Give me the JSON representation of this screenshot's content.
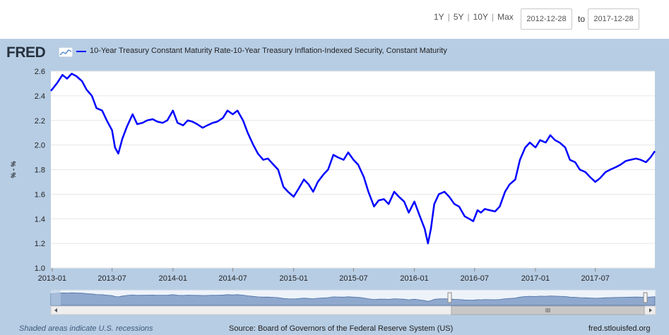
{
  "toolbar": {
    "periods": [
      "1Y",
      "5Y",
      "10Y",
      "Max"
    ],
    "start_date": "2012-12-28",
    "to_label": "to",
    "end_date": "2017-12-28"
  },
  "brand": {
    "logo_text": "FRED"
  },
  "footer": {
    "recession_note": "Shaded areas indicate U.S. recessions",
    "source": "Source: Board of Governors of the Federal Reserve System (US)",
    "site": "fred.stlouisfed.org"
  },
  "colors": {
    "series": "#0000ff",
    "frame": "#b7cde4",
    "navigator_fill": "#6f8fbd"
  },
  "chart_data": {
    "type": "line",
    "ylabel": "% - %",
    "ylim": [
      1.0,
      2.6
    ],
    "yticks": [
      1.0,
      1.2,
      1.4,
      1.6,
      1.8,
      2.0,
      2.2,
      2.4,
      2.6
    ],
    "yticklabels": [
      "1.0",
      "1.2",
      "1.4",
      "1.6",
      "1.8",
      "2.0",
      "2.2",
      "2.4",
      "2.6"
    ],
    "xlim": [
      "2012-12-28",
      "2017-12-28"
    ],
    "xticks": [
      "2013-01",
      "2013-07",
      "2014-01",
      "2014-07",
      "2015-01",
      "2015-07",
      "2016-01",
      "2016-07",
      "2017-01",
      "2017-07"
    ],
    "grid": true,
    "series": [
      {
        "name": "10-Year Treasury Constant Maturity Rate-10-Year Treasury Inflation-Indexed Security, Constant Maturity",
        "x": [
          "2012-12-28",
          "2013-01-15",
          "2013-02-01",
          "2013-02-15",
          "2013-03-01",
          "2013-03-15",
          "2013-04-01",
          "2013-04-15",
          "2013-05-01",
          "2013-05-15",
          "2013-06-01",
          "2013-06-15",
          "2013-07-01",
          "2013-07-10",
          "2013-07-20",
          "2013-08-01",
          "2013-08-15",
          "2013-09-01",
          "2013-09-15",
          "2013-10-01",
          "2013-10-15",
          "2013-11-01",
          "2013-11-15",
          "2013-12-01",
          "2013-12-15",
          "2014-01-01",
          "2014-01-15",
          "2014-02-01",
          "2014-02-15",
          "2014-03-01",
          "2014-03-15",
          "2014-04-01",
          "2014-04-15",
          "2014-05-01",
          "2014-05-15",
          "2014-06-01",
          "2014-06-15",
          "2014-07-01",
          "2014-07-15",
          "2014-08-01",
          "2014-08-15",
          "2014-09-01",
          "2014-09-15",
          "2014-10-01",
          "2014-10-15",
          "2014-11-01",
          "2014-11-15",
          "2014-12-01",
          "2014-12-15",
          "2015-01-01",
          "2015-01-15",
          "2015-02-01",
          "2015-02-15",
          "2015-03-01",
          "2015-03-15",
          "2015-04-01",
          "2015-04-15",
          "2015-05-01",
          "2015-05-15",
          "2015-06-01",
          "2015-06-15",
          "2015-07-01",
          "2015-07-15",
          "2015-08-01",
          "2015-08-15",
          "2015-09-01",
          "2015-09-15",
          "2015-10-01",
          "2015-10-15",
          "2015-11-01",
          "2015-11-15",
          "2015-12-01",
          "2015-12-15",
          "2016-01-01",
          "2016-01-15",
          "2016-02-01",
          "2016-02-11",
          "2016-02-20",
          "2016-03-01",
          "2016-03-15",
          "2016-04-01",
          "2016-04-15",
          "2016-05-01",
          "2016-05-15",
          "2016-06-01",
          "2016-06-15",
          "2016-06-27",
          "2016-07-10",
          "2016-07-20",
          "2016-08-01",
          "2016-08-15",
          "2016-09-01",
          "2016-09-15",
          "2016-10-01",
          "2016-10-15",
          "2016-11-01",
          "2016-11-15",
          "2016-12-01",
          "2016-12-15",
          "2017-01-01",
          "2017-01-15",
          "2017-02-01",
          "2017-02-15",
          "2017-03-01",
          "2017-03-15",
          "2017-04-01",
          "2017-04-15",
          "2017-05-01",
          "2017-05-15",
          "2017-06-01",
          "2017-06-15",
          "2017-07-01",
          "2017-07-15",
          "2017-08-01",
          "2017-08-15",
          "2017-09-01",
          "2017-09-15",
          "2017-10-01",
          "2017-10-15",
          "2017-11-01",
          "2017-11-15",
          "2017-12-01",
          "2017-12-15",
          "2017-12-28"
        ],
        "values": [
          2.44,
          2.5,
          2.57,
          2.54,
          2.58,
          2.56,
          2.52,
          2.45,
          2.4,
          2.3,
          2.28,
          2.2,
          2.12,
          1.98,
          1.93,
          2.05,
          2.15,
          2.25,
          2.17,
          2.18,
          2.2,
          2.21,
          2.19,
          2.18,
          2.2,
          2.28,
          2.18,
          2.16,
          2.2,
          2.19,
          2.17,
          2.14,
          2.16,
          2.18,
          2.19,
          2.22,
          2.28,
          2.25,
          2.28,
          2.2,
          2.1,
          2.0,
          1.93,
          1.88,
          1.89,
          1.84,
          1.8,
          1.66,
          1.62,
          1.58,
          1.64,
          1.72,
          1.68,
          1.62,
          1.7,
          1.76,
          1.8,
          1.92,
          1.9,
          1.88,
          1.94,
          1.88,
          1.84,
          1.74,
          1.62,
          1.5,
          1.55,
          1.56,
          1.52,
          1.62,
          1.58,
          1.54,
          1.45,
          1.54,
          1.44,
          1.32,
          1.2,
          1.32,
          1.52,
          1.6,
          1.62,
          1.58,
          1.52,
          1.5,
          1.42,
          1.4,
          1.38,
          1.47,
          1.45,
          1.48,
          1.47,
          1.46,
          1.5,
          1.62,
          1.68,
          1.72,
          1.88,
          1.98,
          2.02,
          1.98,
          2.04,
          2.02,
          2.08,
          2.04,
          2.02,
          1.98,
          1.88,
          1.86,
          1.8,
          1.78,
          1.74,
          1.7,
          1.73,
          1.78,
          1.8,
          1.82,
          1.84,
          1.87,
          1.88,
          1.89,
          1.88,
          1.86,
          1.9,
          1.95
        ]
      }
    ]
  }
}
